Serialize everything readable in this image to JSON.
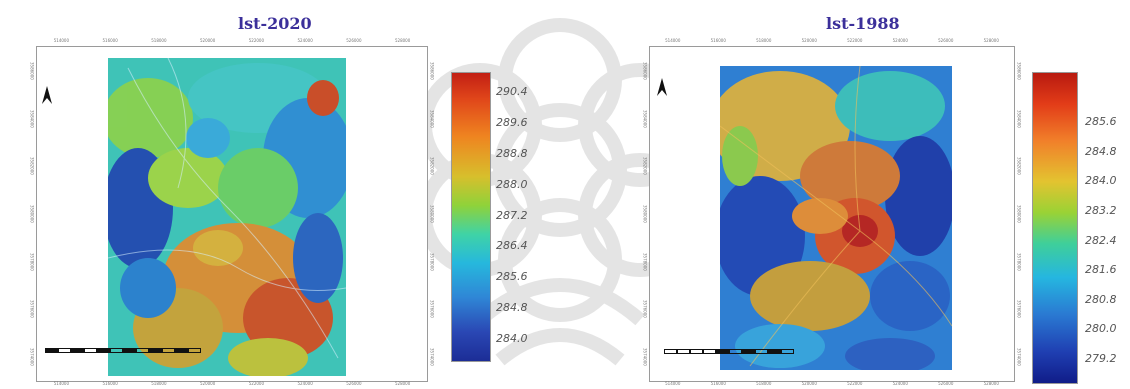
{
  "maps": [
    {
      "title": "lst-2020",
      "top_ticks": [
        "514000",
        "516000",
        "518000",
        "520000",
        "522000",
        "524000",
        "526000",
        "528000"
      ],
      "bottom_ticks": [
        "514000",
        "516000",
        "518000",
        "520000",
        "522000",
        "524000",
        "526000",
        "528000"
      ],
      "left_ticks": [
        "3586000",
        "3584000",
        "3582000",
        "3580000",
        "3578000",
        "3576000",
        "3574000"
      ],
      "right_ticks": [
        "3586000",
        "3584000",
        "3582000",
        "3580000",
        "3578000",
        "3576000",
        "3574000"
      ],
      "legend": {
        "labels": [
          "290.4",
          "289.6",
          "288.8",
          "288.0",
          "287.2",
          "286.4",
          "285.6",
          "284.8",
          "284.0"
        ]
      }
    },
    {
      "title": "lst-1988",
      "top_ticks": [
        "514000",
        "516000",
        "518000",
        "520000",
        "522000",
        "524000",
        "526000",
        "528000"
      ],
      "bottom_ticks": [
        "514000",
        "516000",
        "518000",
        "520000",
        "522000",
        "524000",
        "526000",
        "528000"
      ],
      "left_ticks": [
        "3586000",
        "3584000",
        "3582000",
        "3580000",
        "3578000",
        "3576000",
        "3574000"
      ],
      "right_ticks": [
        "3586000",
        "3584000",
        "3582000",
        "3580000",
        "3578000",
        "3576000",
        "3574000"
      ],
      "legend": {
        "labels": [
          "285.6",
          "284.8",
          "284.0",
          "283.2",
          "282.4",
          "281.6",
          "280.8",
          "280.0",
          "279.2"
        ]
      }
    }
  ],
  "colors": {
    "title": "#3b2f9a",
    "legend_high": "#c21f14",
    "legend_mid": "#8fd23a",
    "legend_low": "#1c2d96"
  }
}
